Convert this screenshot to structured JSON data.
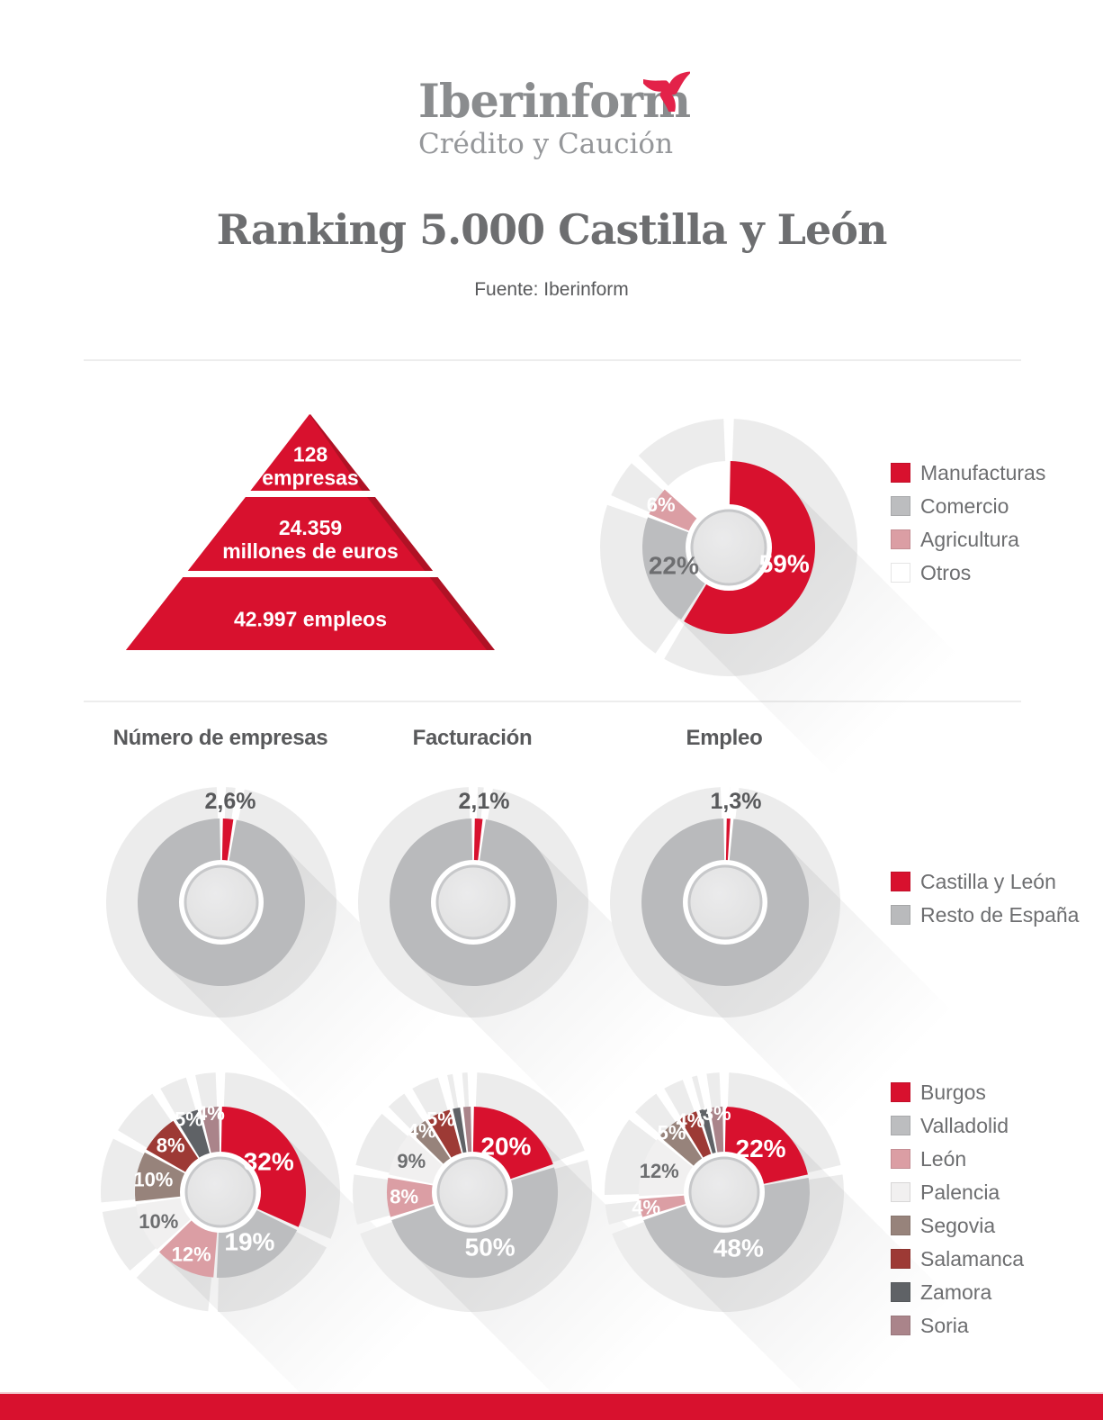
{
  "brand": {
    "name": "Iberinform",
    "tagline": "Crédito y Caución",
    "mark": "three-blade-star-icon",
    "mark_color": "#e32249",
    "name_color": "#8a8c8e",
    "tagline_color": "#95979a"
  },
  "header": {
    "title": "Ranking 5.000 Castilla y León",
    "source": "Fuente: Iberinform"
  },
  "chart_data": [
    {
      "id": "pyramid-resumen",
      "type": "pyramid",
      "color": "#d8112e",
      "shadow_color": "#b01225",
      "levels": [
        {
          "lines": [
            "128",
            "empresas"
          ]
        },
        {
          "lines": [
            "24.359",
            "millones de euros"
          ]
        },
        {
          "lines": [
            "42.997 empleos"
          ]
        }
      ]
    },
    {
      "id": "donut-sectores",
      "type": "donut",
      "legend_position": "right",
      "segments": [
        {
          "name": "Manufacturas",
          "value": 59,
          "label": "59%",
          "color": "#d8112e",
          "label_color": "#ffffff"
        },
        {
          "name": "Comercio",
          "value": 22,
          "label": "22%",
          "color": "#bcbdbf",
          "label_color": "#6d6e70"
        },
        {
          "name": "Agricultura",
          "value": 6,
          "label": "6%",
          "color": "#db9ea4",
          "label_color": "#ffffff"
        },
        {
          "name": "Otros",
          "value": 13,
          "label": "",
          "color": "#ffffff",
          "label_color": ""
        }
      ]
    },
    {
      "id": "donut-cuota-empresas",
      "type": "donut",
      "title": "Número de empresas",
      "callout": "2,6%",
      "segments": [
        {
          "name": "Castilla y León",
          "value": 2.6,
          "label": "",
          "color": "#d8112e",
          "label_color": ""
        },
        {
          "name": "Resto de España",
          "value": 97.4,
          "label": "",
          "color": "#b9babc",
          "label_color": ""
        }
      ]
    },
    {
      "id": "donut-cuota-facturacion",
      "type": "donut",
      "title": "Facturación",
      "callout": "2,1%",
      "segments": [
        {
          "name": "Castilla y León",
          "value": 2.1,
          "label": "",
          "color": "#d8112e",
          "label_color": ""
        },
        {
          "name": "Resto de España",
          "value": 97.9,
          "label": "",
          "color": "#b9babc",
          "label_color": ""
        }
      ]
    },
    {
      "id": "donut-cuota-empleo",
      "type": "donut",
      "title": "Empleo",
      "callout": "1,3%",
      "segments": [
        {
          "name": "Castilla y León",
          "value": 1.3,
          "label": "",
          "color": "#d8112e",
          "label_color": ""
        },
        {
          "name": "Resto de España",
          "value": 98.7,
          "label": "",
          "color": "#b9babc",
          "label_color": ""
        }
      ]
    },
    {
      "id": "donut-provincias-empresas",
      "type": "donut",
      "segments": [
        {
          "name": "Burgos",
          "value": 32,
          "label": "32%",
          "color": "#d8112e",
          "label_color": "#ffffff"
        },
        {
          "name": "Valladolid",
          "value": 19,
          "label": "19%",
          "color": "#bcbdbf",
          "label_color": "#ffffff"
        },
        {
          "name": "León",
          "value": 12,
          "label": "12%",
          "color": "#db9ea4",
          "label_color": "#ffffff"
        },
        {
          "name": "Palencia",
          "value": 10,
          "label": "10%",
          "color": "#f1f0f0",
          "label_color": "#6d6e70"
        },
        {
          "name": "Segovia",
          "value": 10,
          "label": "10%",
          "color": "#97837b",
          "label_color": "#ffffff"
        },
        {
          "name": "Salamanca",
          "value": 8,
          "label": "8%",
          "color": "#9d3a35",
          "label_color": "#ffffff"
        },
        {
          "name": "Zamora",
          "value": 5,
          "label": "5%",
          "color": "#5f6266",
          "label_color": "#ffffff"
        },
        {
          "name": "Soria",
          "value": 4,
          "label": "4%",
          "color": "#aa848a",
          "label_color": "#ffffff"
        }
      ]
    },
    {
      "id": "donut-provincias-facturacion",
      "type": "donut",
      "segments": [
        {
          "name": "Burgos",
          "value": 20,
          "label": "20%",
          "color": "#d8112e",
          "label_color": "#ffffff"
        },
        {
          "name": "Valladolid",
          "value": 50,
          "label": "50%",
          "color": "#bcbdbf",
          "label_color": "#ffffff"
        },
        {
          "name": "León",
          "value": 8,
          "label": "8%",
          "color": "#db9ea4",
          "label_color": "#ffffff"
        },
        {
          "name": "Palencia",
          "value": 9,
          "label": "9%",
          "color": "#f1f0f0",
          "label_color": "#6d6e70"
        },
        {
          "name": "Segovia",
          "value": 4,
          "label": "4%",
          "color": "#97837b",
          "label_color": "#ffffff"
        },
        {
          "name": "Salamanca",
          "value": 5,
          "label": "5%",
          "color": "#9d3a35",
          "label_color": "#ffffff"
        },
        {
          "name": "Zamora",
          "value": 2,
          "label": "",
          "color": "#5f6266",
          "label_color": ""
        },
        {
          "name": "Soria",
          "value": 2,
          "label": "",
          "color": "#aa848a",
          "label_color": ""
        }
      ]
    },
    {
      "id": "donut-provincias-empleo",
      "type": "donut",
      "segments": [
        {
          "name": "Burgos",
          "value": 22,
          "label": "22%",
          "color": "#d8112e",
          "label_color": "#ffffff"
        },
        {
          "name": "Valladolid",
          "value": 48,
          "label": "48%",
          "color": "#bcbdbf",
          "label_color": "#ffffff"
        },
        {
          "name": "León",
          "value": 4,
          "label": "4%",
          "color": "#db9ea4",
          "label_color": "#ffffff"
        },
        {
          "name": "Palencia",
          "value": 12,
          "label": "12%",
          "color": "#f1f0f0",
          "label_color": "#6d6e70"
        },
        {
          "name": "Segovia",
          "value": 5,
          "label": "5%",
          "color": "#97837b",
          "label_color": "#ffffff"
        },
        {
          "name": "Salamanca",
          "value": 4,
          "label": "4%",
          "color": "#9d3a35",
          "label_color": "#ffffff"
        },
        {
          "name": "Zamora",
          "value": 2,
          "label": "",
          "color": "#5f6266",
          "label_color": ""
        },
        {
          "name": "Soria",
          "value": 3,
          "label": "3%",
          "color": "#aa848a",
          "label_color": "#ffffff"
        }
      ]
    }
  ],
  "footer": {
    "bar_color": "#d8112e"
  }
}
